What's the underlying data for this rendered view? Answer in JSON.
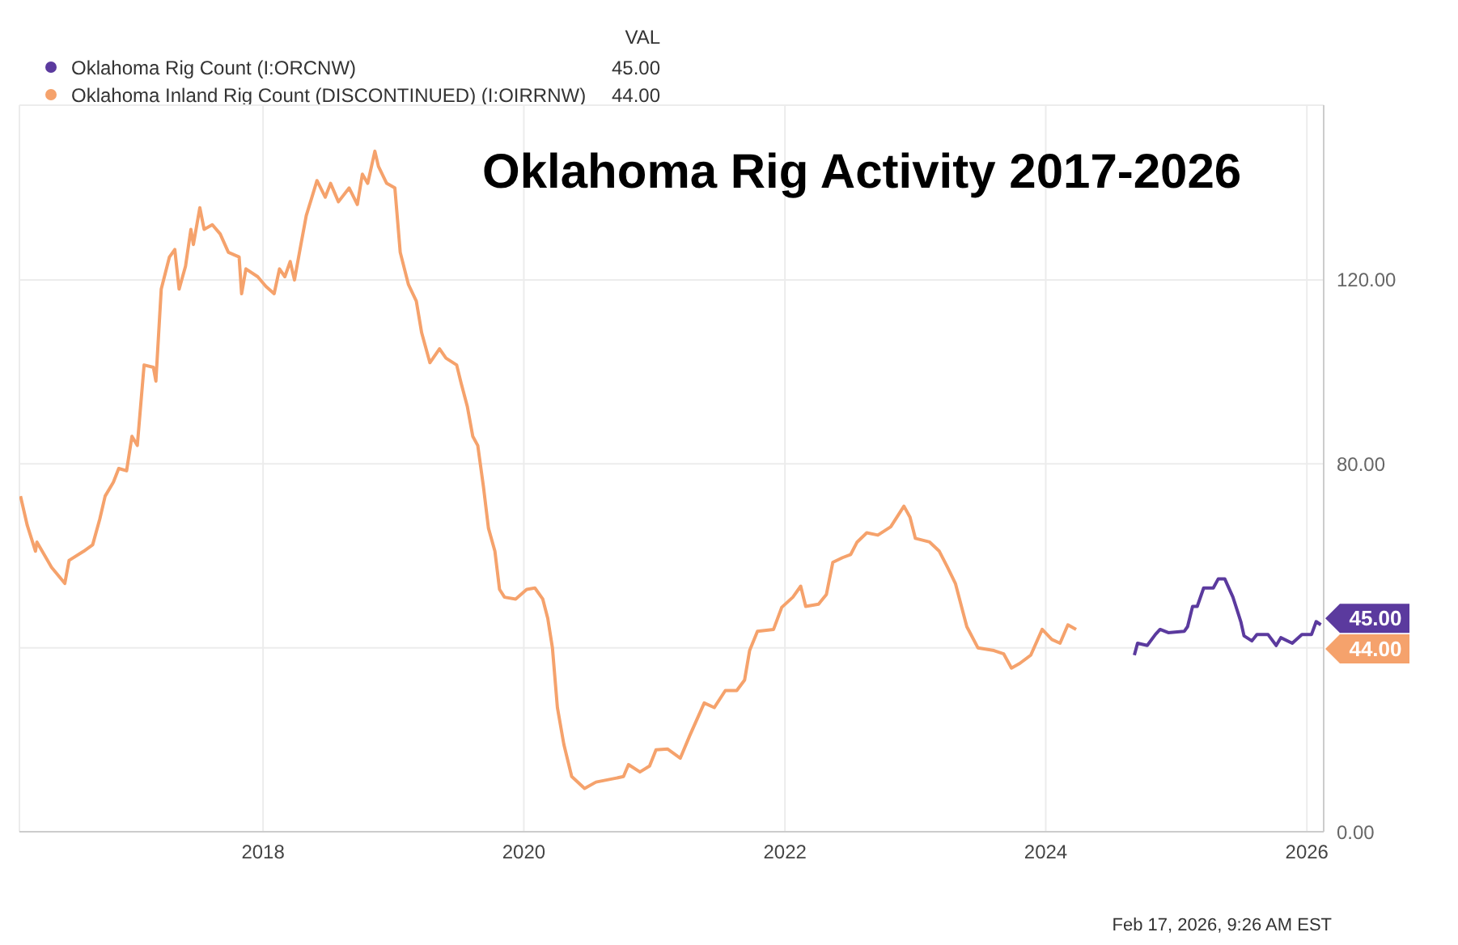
{
  "chart_data": {
    "type": "line",
    "title": "Oklahoma Rig Activity 2017-2026",
    "legend_title": "VAL",
    "legend": "top left",
    "grid": true,
    "marker": "none",
    "line_style": "solid",
    "xlim": [
      "2016-02-19",
      "2026-02-17"
    ],
    "xticks": [
      "2018",
      "2020",
      "2022",
      "2024",
      "2026"
    ],
    "ylim": [
      0,
      158
    ],
    "yticks": [
      {
        "value": 0,
        "label": "0.00"
      },
      {
        "value": 40,
        "label": null
      },
      {
        "value": 80,
        "label": "80.00"
      },
      {
        "value": 120,
        "label": "120.00"
      }
    ],
    "annotations": [
      "45.00",
      "44.00",
      "Feb 17, 2026, 9:26 AM EST"
    ],
    "series": [
      {
        "name": "Oklahoma Rig Count (I:ORCNW)",
        "color": "#5b3a9e",
        "x": [
          "2024-09-05",
          "2024-09-14",
          "2024-10-11",
          "2024-11-03",
          "2024-11-16",
          "2024-12-09",
          "2025-01-23",
          "2025-02-01",
          "2025-02-15",
          "2025-02-28",
          "2025-03-18",
          "2025-04-14",
          "2025-04-28",
          "2025-05-16",
          "2025-06-08",
          "2025-06-30",
          "2025-07-09",
          "2025-07-31",
          "2025-08-14",
          "2025-09-14",
          "2025-10-07",
          "2025-10-20",
          "2025-11-21",
          "2025-12-18",
          "2026-01-14",
          "2026-01-27",
          "2026-02-09"
        ],
        "values": [
          38.4,
          41,
          40.5,
          42.9,
          44,
          43.3,
          43.6,
          44.6,
          49,
          49,
          53,
          53,
          55,
          55,
          51,
          45.7,
          42.6,
          41.5,
          42.9,
          42.9,
          40.5,
          42.2,
          41,
          42.9,
          42.9,
          45.7,
          45
        ]
      },
      {
        "name": "Oklahoma Inland Rig Count (DISCONTINUED) (I:OIRRNW)",
        "color": "#f5a26c",
        "x": [
          "2016-02-22",
          "2016-03-12",
          "2016-04-04",
          "2016-04-08",
          "2016-05-19",
          "2016-06-25",
          "2016-07-07",
          "2016-08-17",
          "2016-09-11",
          "2016-10-01",
          "2016-10-16",
          "2016-11-08",
          "2016-11-23",
          "2016-12-15",
          "2016-12-30",
          "2017-01-14",
          "2017-02-02",
          "2017-02-28",
          "2017-03-07",
          "2017-03-22",
          "2017-04-14",
          "2017-04-29",
          "2017-05-11",
          "2017-05-29",
          "2017-06-13",
          "2017-06-20",
          "2017-07-08",
          "2017-07-20",
          "2017-08-12",
          "2017-09-03",
          "2017-09-26",
          "2017-10-26",
          "2017-11-02",
          "2017-11-14",
          "2017-12-17",
          "2018-01-09",
          "2018-02-01",
          "2018-02-16",
          "2018-03-03",
          "2018-03-18",
          "2018-03-30",
          "2018-04-17",
          "2018-05-02",
          "2018-05-17",
          "2018-06-01",
          "2018-06-24",
          "2018-07-09",
          "2018-07-31",
          "2018-08-30",
          "2018-09-22",
          "2018-10-06",
          "2018-10-21",
          "2018-11-10",
          "2018-11-20",
          "2018-12-13",
          "2019-01-05",
          "2019-01-20",
          "2019-02-12",
          "2019-03-06",
          "2019-03-21",
          "2019-04-13",
          "2019-05-10",
          "2019-05-28",
          "2019-06-27",
          "2019-07-09",
          "2019-07-27",
          "2019-08-11",
          "2019-08-25",
          "2019-09-10",
          "2019-09-24",
          "2019-10-12",
          "2019-10-25",
          "2019-11-08",
          "2019-12-09",
          "2020-01-09",
          "2020-02-01",
          "2020-02-23",
          "2020-03-08",
          "2020-03-21",
          "2020-04-04",
          "2020-04-22",
          "2020-05-14",
          "2020-06-19",
          "2020-07-21",
          "2020-09-05",
          "2020-10-06",
          "2020-10-20",
          "2020-11-21",
          "2020-12-18",
          "2021-01-05",
          "2021-02-06",
          "2021-03-14",
          "2021-04-10",
          "2021-05-20",
          "2021-06-17",
          "2021-07-18",
          "2021-08-19",
          "2021-09-10",
          "2021-09-24",
          "2021-10-16",
          "2021-11-30",
          "2021-12-23",
          "2022-01-23",
          "2022-02-14",
          "2022-02-28",
          "2022-04-05",
          "2022-04-27",
          "2022-05-15",
          "2022-06-11",
          "2022-07-04",
          "2022-07-22",
          "2022-08-18",
          "2022-09-18",
          "2022-10-24",
          "2022-11-30",
          "2022-12-17",
          "2023-01-01",
          "2023-02-10",
          "2023-03-09",
          "2023-04-01",
          "2023-04-23",
          "2023-05-25",
          "2023-06-25",
          "2023-08-09",
          "2023-09-05",
          "2023-09-27",
          "2023-10-20",
          "2023-11-20",
          "2023-12-22",
          "2024-01-18",
          "2024-02-10",
          "2024-03-03",
          "2024-03-26"
        ],
        "values": [
          73,
          66.6,
          61,
          63,
          57.5,
          54,
          59,
          61,
          62.4,
          68,
          73,
          76,
          79,
          78.5,
          86,
          84,
          101.5,
          101,
          98,
          118,
          125,
          126.6,
          118,
          123,
          131,
          127.7,
          135.7,
          131,
          132,
          130,
          126,
          125,
          117,
          122.4,
          120.7,
          118.6,
          117,
          122.4,
          120.7,
          124,
          120,
          127.7,
          134,
          137.8,
          141.6,
          138,
          141,
          137,
          140,
          136.4,
          143,
          141,
          148,
          144.7,
          141,
          140,
          126,
          119,
          115.4,
          108.5,
          102,
          105,
          103,
          101.5,
          97.7,
          92.4,
          86,
          84,
          75,
          66,
          61,
          52.7,
          51,
          50.6,
          52.7,
          53,
          50.6,
          46.4,
          40,
          27,
          19,
          12,
          9.4,
          10.8,
          11.5,
          12,
          14.6,
          13,
          14.3,
          17.8,
          18,
          16,
          21,
          28,
          27,
          30.7,
          30.7,
          33,
          39.4,
          43.6,
          44,
          48.8,
          51,
          53.4,
          49,
          49.5,
          51.6,
          58.6,
          59.6,
          60.3,
          63,
          65,
          64.5,
          66.3,
          70.8,
          68.4,
          63.8,
          63,
          61,
          57.5,
          54,
          44.6,
          40,
          39.4,
          38.7,
          35.6,
          36.6,
          38.4,
          44,
          41.8,
          41,
          45,
          44
        ]
      }
    ]
  }
}
